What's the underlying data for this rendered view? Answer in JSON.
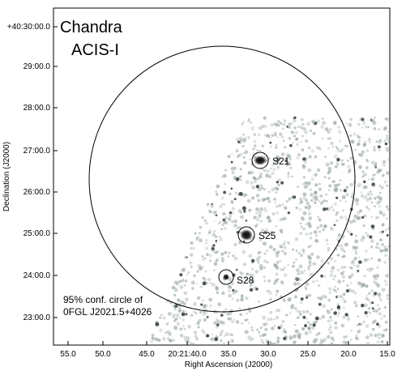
{
  "figure": {
    "instrument_line1": "Chandra",
    "instrument_line2": "ACIS-I",
    "note_line1": "95% conf. circle of",
    "note_line2": "0FGL J2021.5+4026",
    "xlabel": "Right Ascension (J2000)",
    "ylabel": "Declination (J2000)",
    "x_ticks": [
      "55.0",
      "50.0",
      "45.0",
      "20:21:40.0",
      "35.0",
      "30.0",
      "25.0",
      "20.0",
      "15.0"
    ],
    "y_ticks": [
      "+40:30:00.0",
      "29:00.0",
      "28:00.0",
      "27:00.0",
      "26:00.0",
      "25:00.0",
      "24:00.0",
      "23:00.0"
    ],
    "sources": [
      {
        "label": "S21",
        "ra_sec": 30.8,
        "dec_min": 26.75
      },
      {
        "label": "S25",
        "ra_sec": 32.3,
        "dec_min": 24.97
      },
      {
        "label": "S28",
        "ra_sec": 35.0,
        "dec_min": 23.95
      }
    ],
    "confidence_circle": {
      "center_ra_sec": 35.3,
      "center_dec_min": 26.3,
      "radius_arcmin": 3.2
    }
  }
}
